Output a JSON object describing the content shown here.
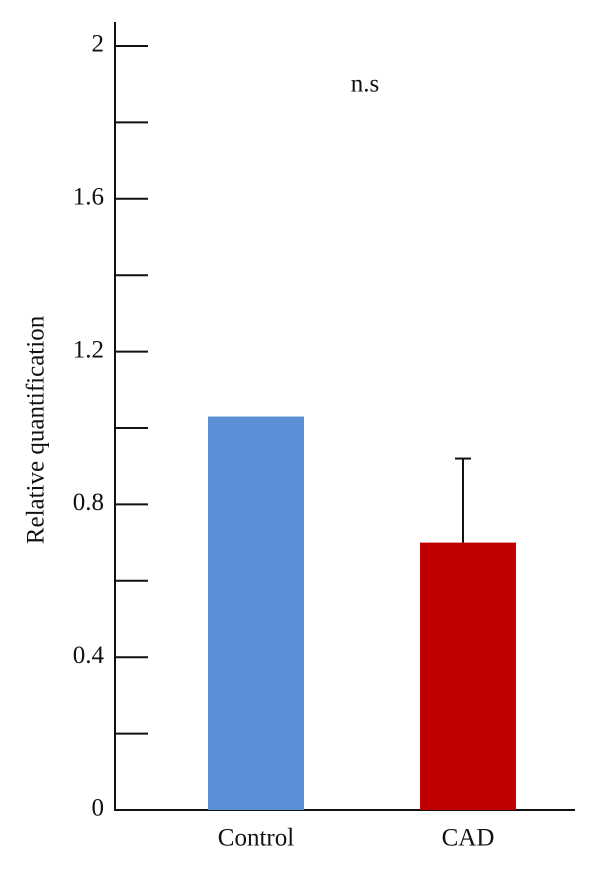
{
  "chart_data": {
    "type": "bar",
    "y_label": "Relative quantification",
    "annotation": "n.s",
    "categories": [
      "Control",
      "CAD"
    ],
    "values": [
      1.03,
      0.7
    ],
    "errors": [
      null,
      0.22
    ],
    "colors": [
      "#5b8fd6",
      "#c00000"
    ],
    "ylim": [
      0,
      2
    ],
    "yticks": [
      0,
      0.4,
      0.8,
      1.2,
      1.6,
      2
    ],
    "minor_yticks": [
      0.2,
      0.6,
      1.0,
      1.4,
      1.8
    ],
    "grid": false
  }
}
